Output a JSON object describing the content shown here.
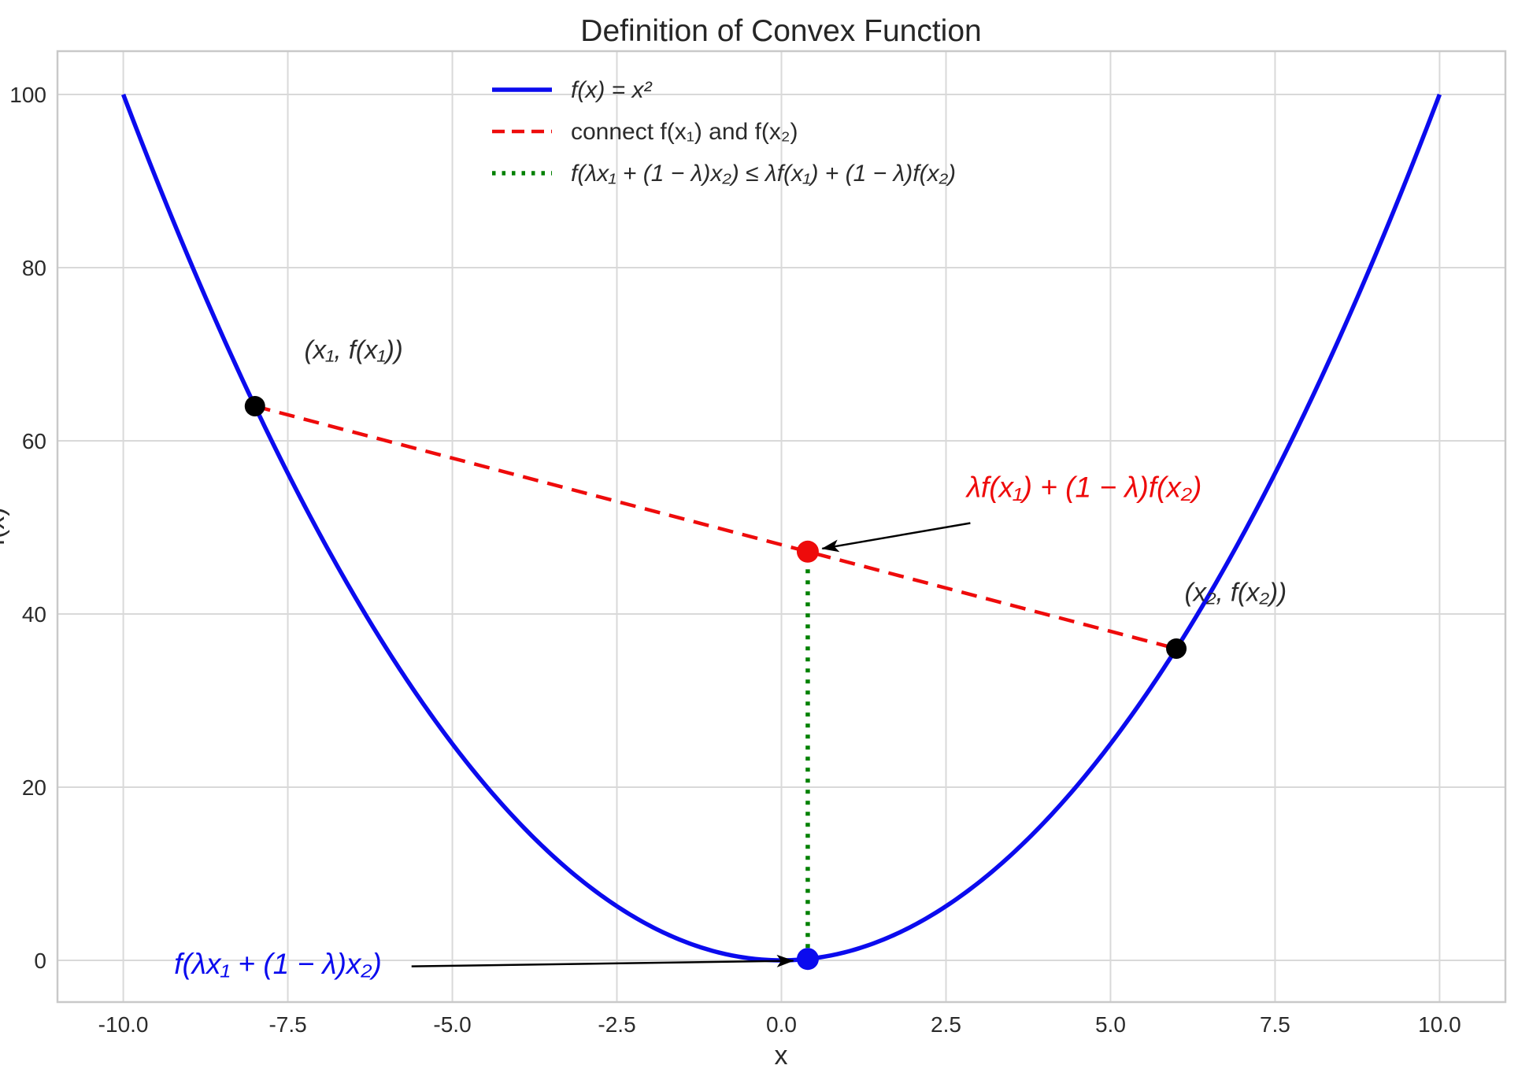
{
  "colors": {
    "curve": "#0b0bee",
    "secant": "#ee0b0b",
    "vertical": "#008000",
    "point_black": "#000000",
    "point_red": "#ee0b0b",
    "point_blue": "#0b0bee",
    "grid": "#d9d9d9",
    "spine": "#c9c9c9",
    "text": "#2b2b2b",
    "title": "#262626",
    "arrow": "#000000",
    "annotation_red": "#ee0b0b",
    "annotation_blue": "#0b0bee",
    "annotation_black": "#2b2b2b"
  },
  "chart_data": {
    "type": "line",
    "title": "Definition of Convex Function",
    "xlabel": "x",
    "ylabel": "f(x)",
    "xlim": [
      -11.0,
      11.0
    ],
    "ylim": [
      -4.82,
      105.0
    ],
    "x_ticks": [
      -10.0,
      -7.5,
      -5.0,
      -2.5,
      0.0,
      2.5,
      5.0,
      7.5,
      10.0
    ],
    "x_tick_labels": [
      "-10.0",
      "-7.5",
      "-5.0",
      "-2.5",
      "0.0",
      "2.5",
      "5.0",
      "7.5",
      "10.0"
    ],
    "y_ticks": [
      0,
      20,
      40,
      60,
      80,
      100
    ],
    "y_tick_labels": [
      "0",
      "20",
      "40",
      "60",
      "80",
      "100"
    ],
    "grid": true,
    "lambda": 0.4,
    "x1": -8,
    "fx1": 64,
    "x2": 6,
    "fx2": 36,
    "chord_point": [
      0.4,
      47.2
    ],
    "curve_point": [
      0.4,
      0.16
    ],
    "series": [
      {
        "name": "f(x) = x²",
        "kind": "function",
        "fn": "x^2",
        "x_range": [
          -10,
          10
        ],
        "samples": 400,
        "color": "#0b0bee",
        "width": 5.5,
        "dash": ""
      },
      {
        "name": "secant chord",
        "kind": "segment",
        "points": [
          [
            -8,
            64
          ],
          [
            6,
            36
          ]
        ],
        "color": "#ee0b0b",
        "width": 4.5,
        "dash": "20 12"
      },
      {
        "name": "convexity gap",
        "kind": "segment",
        "points": [
          [
            0.4,
            0.16
          ],
          [
            0.4,
            47.2
          ]
        ],
        "color": "#008000",
        "width": 5.5,
        "dash": "5 9"
      }
    ],
    "key_points": [
      {
        "name": "x1-point",
        "x": -8,
        "y": 64,
        "r": 13,
        "color": "#000000"
      },
      {
        "name": "x2-point",
        "x": 6,
        "y": 36,
        "r": 13,
        "color": "#000000"
      },
      {
        "name": "chord-point",
        "x": 0.4,
        "y": 47.2,
        "r": 14,
        "color": "#ee0b0b"
      },
      {
        "name": "curve-point",
        "x": 0.4,
        "y": 0.16,
        "r": 14,
        "color": "#0b0bee"
      }
    ],
    "legend": {
      "frame": false,
      "position": "upper left of center",
      "entries": [
        {
          "label": "f(x) = x²",
          "style": "solid",
          "color": "#0b0bee",
          "width": 5.5,
          "dash": "",
          "italic": true
        },
        {
          "label": "connect f(x₁) and f(x₂)",
          "style": "dashed",
          "color": "#ee0b0b",
          "width": 4.5,
          "dash": "16 9",
          "italic": false
        },
        {
          "label": "f(λx₁ + (1 − λ)x₂) ≤ λf(x₁) + (1 − λ)f(x₂)",
          "style": "dotted",
          "color": "#008000",
          "width": 5.5,
          "dash": "4.5 8",
          "italic": true
        }
      ]
    },
    "annotations": [
      {
        "name": "x1-point-label",
        "text": "(x₁, f(x₁))",
        "x": -6.5,
        "y": 69.5,
        "color": "#2b2b2b",
        "size": 33,
        "italic": true
      },
      {
        "name": "x2-point-label",
        "text": "(x₂, f(x₂))",
        "x": 6.9,
        "y": 41.5,
        "color": "#2b2b2b",
        "size": 33,
        "italic": true
      },
      {
        "name": "chord-value-label",
        "text": "λf(x₁) + (1 − λ)f(x₂)",
        "x": 4.6,
        "y": 53.5,
        "color": "#ee0b0b",
        "size": 37,
        "italic": true
      },
      {
        "name": "curve-value-label",
        "text": "f(λx₁ + (1 − λ)x₂)",
        "x": -7.65,
        "y": -1.55,
        "color": "#0b0bee",
        "size": 37,
        "italic": true
      }
    ],
    "arrows": [
      {
        "name": "arrow-to-chord-point",
        "from": [
          2.87,
          50.5
        ],
        "to": [
          0.62,
          47.55
        ]
      },
      {
        "name": "arrow-to-curve-point",
        "from": [
          -5.62,
          -0.7
        ],
        "to": [
          0.18,
          -0.05
        ]
      }
    ]
  }
}
